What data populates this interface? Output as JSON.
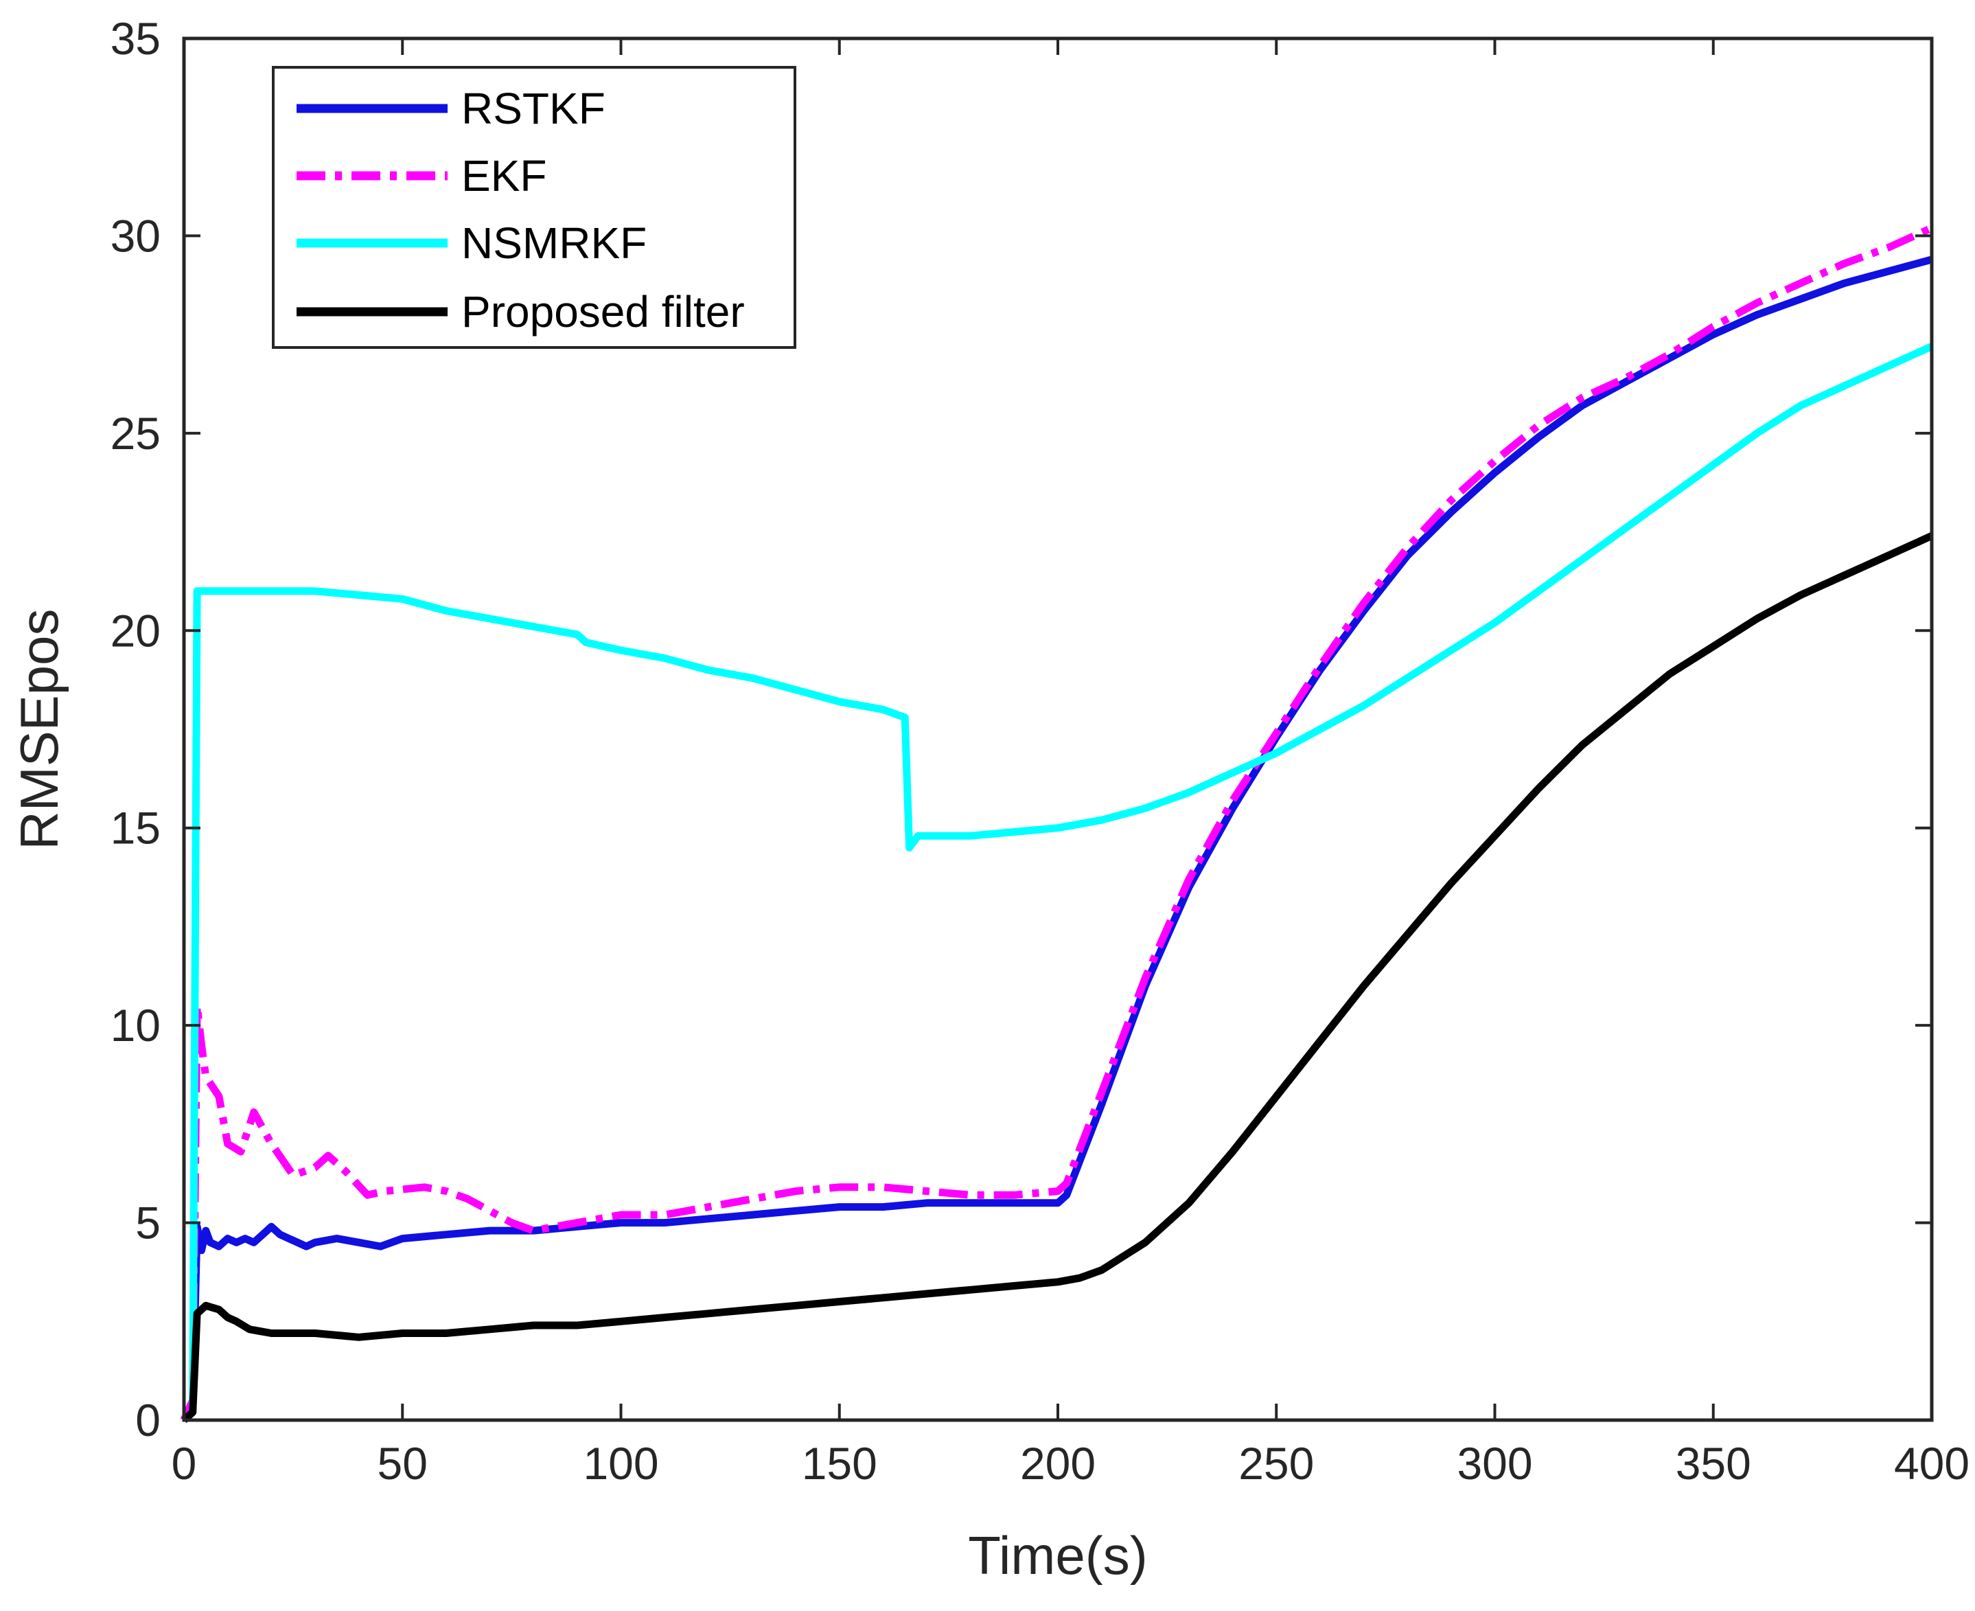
{
  "chart_data": {
    "type": "line",
    "title": "",
    "xlabel": "Time(s)",
    "ylabel": "RMSEpos",
    "xlim": [
      0,
      400
    ],
    "ylim": [
      0,
      35
    ],
    "xticks": [
      0,
      50,
      100,
      150,
      200,
      250,
      300,
      350,
      400
    ],
    "yticks": [
      0,
      5,
      10,
      15,
      20,
      25,
      30,
      35
    ],
    "xtick_labels": [
      "0",
      "50",
      "100",
      "150",
      "200",
      "250",
      "300",
      "350",
      "400"
    ],
    "ytick_labels": [
      "0",
      "5",
      "10",
      "15",
      "20",
      "25",
      "30",
      "35"
    ],
    "grid": false,
    "legend_position": "top-left",
    "series": [
      {
        "name": "RSTKF",
        "color": "#1010e0",
        "style": "solid",
        "points": [
          [
            0,
            0
          ],
          [
            2,
            0.3
          ],
          [
            3,
            4.9
          ],
          [
            4,
            4.3
          ],
          [
            5,
            4.8
          ],
          [
            6,
            4.5
          ],
          [
            8,
            4.4
          ],
          [
            10,
            4.6
          ],
          [
            12,
            4.5
          ],
          [
            14,
            4.6
          ],
          [
            16,
            4.5
          ],
          [
            18,
            4.7
          ],
          [
            20,
            4.9
          ],
          [
            22,
            4.7
          ],
          [
            24,
            4.6
          ],
          [
            26,
            4.5
          ],
          [
            28,
            4.4
          ],
          [
            30,
            4.5
          ],
          [
            35,
            4.6
          ],
          [
            40,
            4.5
          ],
          [
            45,
            4.4
          ],
          [
            50,
            4.6
          ],
          [
            60,
            4.7
          ],
          [
            70,
            4.8
          ],
          [
            80,
            4.8
          ],
          [
            90,
            4.9
          ],
          [
            100,
            5.0
          ],
          [
            110,
            5.0
          ],
          [
            120,
            5.1
          ],
          [
            130,
            5.2
          ],
          [
            140,
            5.3
          ],
          [
            150,
            5.4
          ],
          [
            160,
            5.4
          ],
          [
            170,
            5.5
          ],
          [
            180,
            5.5
          ],
          [
            190,
            5.5
          ],
          [
            200,
            5.5
          ],
          [
            202,
            5.7
          ],
          [
            210,
            8.0
          ],
          [
            220,
            11.0
          ],
          [
            230,
            13.5
          ],
          [
            240,
            15.5
          ],
          [
            250,
            17.3
          ],
          [
            260,
            19.0
          ],
          [
            270,
            20.5
          ],
          [
            280,
            21.9
          ],
          [
            290,
            23.0
          ],
          [
            300,
            24.0
          ],
          [
            310,
            24.9
          ],
          [
            320,
            25.7
          ],
          [
            330,
            26.3
          ],
          [
            340,
            26.9
          ],
          [
            350,
            27.5
          ],
          [
            360,
            28.0
          ],
          [
            370,
            28.4
          ],
          [
            380,
            28.8
          ],
          [
            390,
            29.1
          ],
          [
            400,
            29.4
          ]
        ]
      },
      {
        "name": "EKF",
        "color": "#ff00ff",
        "style": "dashdot",
        "points": [
          [
            0,
            0
          ],
          [
            2,
            0.5
          ],
          [
            3,
            10.5
          ],
          [
            4,
            9.5
          ],
          [
            5,
            8.7
          ],
          [
            8,
            8.2
          ],
          [
            10,
            7.0
          ],
          [
            13,
            6.8
          ],
          [
            16,
            7.8
          ],
          [
            20,
            7.0
          ],
          [
            25,
            6.2
          ],
          [
            30,
            6.4
          ],
          [
            33,
            6.7
          ],
          [
            37,
            6.3
          ],
          [
            42,
            5.7
          ],
          [
            46,
            5.8
          ],
          [
            55,
            5.9
          ],
          [
            60,
            5.8
          ],
          [
            65,
            5.6
          ],
          [
            70,
            5.3
          ],
          [
            75,
            5.0
          ],
          [
            80,
            4.8
          ],
          [
            85,
            4.9
          ],
          [
            90,
            5.0
          ],
          [
            100,
            5.2
          ],
          [
            110,
            5.2
          ],
          [
            120,
            5.4
          ],
          [
            130,
            5.6
          ],
          [
            140,
            5.8
          ],
          [
            150,
            5.9
          ],
          [
            160,
            5.9
          ],
          [
            170,
            5.8
          ],
          [
            180,
            5.7
          ],
          [
            190,
            5.7
          ],
          [
            200,
            5.8
          ],
          [
            202,
            6.0
          ],
          [
            210,
            8.3
          ],
          [
            220,
            11.2
          ],
          [
            230,
            13.7
          ],
          [
            240,
            15.7
          ],
          [
            250,
            17.4
          ],
          [
            260,
            19.1
          ],
          [
            270,
            20.7
          ],
          [
            280,
            22.1
          ],
          [
            290,
            23.3
          ],
          [
            300,
            24.3
          ],
          [
            310,
            25.2
          ],
          [
            320,
            25.9
          ],
          [
            330,
            26.4
          ],
          [
            340,
            27.0
          ],
          [
            350,
            27.7
          ],
          [
            360,
            28.3
          ],
          [
            370,
            28.8
          ],
          [
            380,
            29.3
          ],
          [
            390,
            29.7
          ],
          [
            400,
            30.2
          ]
        ]
      },
      {
        "name": "NSMRKF",
        "color": "#00ffff",
        "style": "solid",
        "points": [
          [
            0,
            0
          ],
          [
            2,
            0.2
          ],
          [
            3,
            21.0
          ],
          [
            10,
            21.0
          ],
          [
            20,
            21.0
          ],
          [
            30,
            21.0
          ],
          [
            40,
            20.9
          ],
          [
            50,
            20.8
          ],
          [
            60,
            20.5
          ],
          [
            70,
            20.3
          ],
          [
            80,
            20.1
          ],
          [
            90,
            19.9
          ],
          [
            92,
            19.7
          ],
          [
            100,
            19.5
          ],
          [
            110,
            19.3
          ],
          [
            120,
            19.0
          ],
          [
            130,
            18.8
          ],
          [
            140,
            18.5
          ],
          [
            150,
            18.2
          ],
          [
            160,
            18.0
          ],
          [
            165,
            17.8
          ],
          [
            166,
            14.5
          ],
          [
            168,
            14.8
          ],
          [
            175,
            14.8
          ],
          [
            180,
            14.8
          ],
          [
            190,
            14.9
          ],
          [
            200,
            15.0
          ],
          [
            210,
            15.2
          ],
          [
            220,
            15.5
          ],
          [
            230,
            15.9
          ],
          [
            240,
            16.4
          ],
          [
            250,
            16.9
          ],
          [
            260,
            17.5
          ],
          [
            270,
            18.1
          ],
          [
            280,
            18.8
          ],
          [
            290,
            19.5
          ],
          [
            300,
            20.2
          ],
          [
            310,
            21.0
          ],
          [
            320,
            21.8
          ],
          [
            330,
            22.6
          ],
          [
            340,
            23.4
          ],
          [
            350,
            24.2
          ],
          [
            360,
            25.0
          ],
          [
            370,
            25.7
          ],
          [
            380,
            26.2
          ],
          [
            390,
            26.7
          ],
          [
            400,
            27.2
          ]
        ]
      },
      {
        "name": "Proposed filter",
        "color": "#000000",
        "style": "solid",
        "points": [
          [
            0,
            0
          ],
          [
            2,
            0.2
          ],
          [
            3,
            2.7
          ],
          [
            5,
            2.9
          ],
          [
            8,
            2.8
          ],
          [
            10,
            2.6
          ],
          [
            12,
            2.5
          ],
          [
            15,
            2.3
          ],
          [
            20,
            2.2
          ],
          [
            30,
            2.2
          ],
          [
            40,
            2.1
          ],
          [
            50,
            2.2
          ],
          [
            60,
            2.2
          ],
          [
            70,
            2.3
          ],
          [
            80,
            2.4
          ],
          [
            90,
            2.4
          ],
          [
            100,
            2.5
          ],
          [
            110,
            2.6
          ],
          [
            120,
            2.7
          ],
          [
            130,
            2.8
          ],
          [
            140,
            2.9
          ],
          [
            150,
            3.0
          ],
          [
            160,
            3.1
          ],
          [
            170,
            3.2
          ],
          [
            180,
            3.3
          ],
          [
            190,
            3.4
          ],
          [
            200,
            3.5
          ],
          [
            205,
            3.6
          ],
          [
            210,
            3.8
          ],
          [
            220,
            4.5
          ],
          [
            230,
            5.5
          ],
          [
            240,
            6.8
          ],
          [
            250,
            8.2
          ],
          [
            260,
            9.6
          ],
          [
            270,
            11.0
          ],
          [
            280,
            12.3
          ],
          [
            290,
            13.6
          ],
          [
            300,
            14.8
          ],
          [
            310,
            16.0
          ],
          [
            320,
            17.1
          ],
          [
            330,
            18.0
          ],
          [
            340,
            18.9
          ],
          [
            350,
            19.6
          ],
          [
            360,
            20.3
          ],
          [
            370,
            20.9
          ],
          [
            380,
            21.4
          ],
          [
            390,
            21.9
          ],
          [
            400,
            22.4
          ]
        ]
      }
    ]
  }
}
